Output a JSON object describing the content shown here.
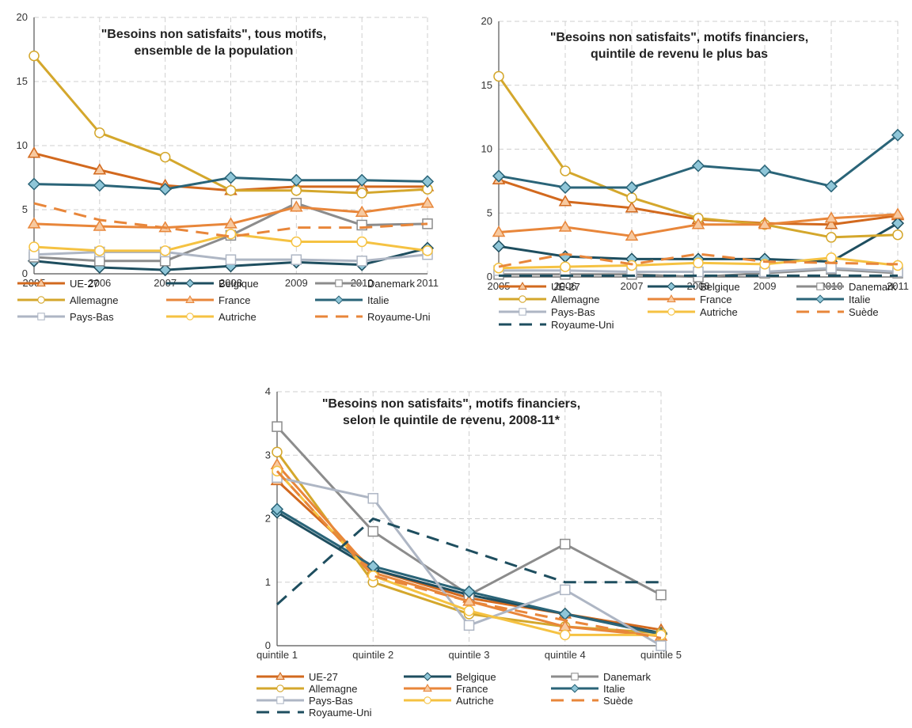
{
  "chart_data": [
    {
      "type": "line",
      "title_lines": [
        "\"Besoins non satisfaits\", tous motifs,",
        "ensemble de la population"
      ],
      "x": [
        "2005",
        "2006",
        "2007",
        "2008",
        "2009",
        "2010",
        "2011"
      ],
      "ylim": [
        0,
        20
      ],
      "yticks": [
        "0",
        "5",
        "10",
        "15",
        "20"
      ],
      "grid": true,
      "legend": "bottom",
      "series": [
        {
          "name": "UE-27",
          "color": "#D2691E",
          "marker": "triangle",
          "dash": false,
          "values": [
            9.4,
            8.1,
            6.9,
            6.5,
            6.8,
            6.8,
            6.8
          ]
        },
        {
          "name": "Belgique",
          "color": "#1E4E5F",
          "marker": "diamond",
          "dash": false,
          "values": [
            1.0,
            0.5,
            0.3,
            0.6,
            0.9,
            0.7,
            2.0
          ]
        },
        {
          "name": "Danemark",
          "color": "#8C8C8C",
          "marker": "square",
          "dash": false,
          "values": [
            1.3,
            1.0,
            1.0,
            3.0,
            5.5,
            3.8,
            3.9
          ]
        },
        {
          "name": "Allemagne",
          "color": "#D4A72C",
          "marker": "circle",
          "dash": false,
          "values": [
            17.0,
            11.0,
            9.1,
            6.5,
            6.5,
            6.3,
            6.6
          ]
        },
        {
          "name": "France",
          "color": "#E8863A",
          "marker": "triangle",
          "dash": false,
          "values": [
            3.9,
            3.7,
            3.6,
            3.9,
            5.2,
            4.8,
            5.5
          ]
        },
        {
          "name": "Italie",
          "color": "#2A6478",
          "marker": "diamond",
          "dash": false,
          "values": [
            7.0,
            6.9,
            6.6,
            7.5,
            7.3,
            7.3,
            7.2
          ]
        },
        {
          "name": "Pays-Bas",
          "color": "#AEB6C4",
          "marker": "square",
          "dash": false,
          "values": [
            1.5,
            1.7,
            1.7,
            1.1,
            1.1,
            1.0,
            1.5
          ]
        },
        {
          "name": "Autriche",
          "color": "#F5C242",
          "marker": "circle",
          "dash": false,
          "values": [
            2.1,
            1.8,
            1.8,
            3.1,
            2.5,
            2.5,
            1.8
          ]
        },
        {
          "name": "Royaume-Uni",
          "color": "#E8863A",
          "marker": "none",
          "dash": true,
          "values": [
            5.5,
            4.2,
            3.6,
            2.9,
            3.6,
            3.6,
            3.9
          ]
        }
      ]
    },
    {
      "type": "line",
      "title_lines": [
        "\"Besoins non satisfaits\", motifs financiers,",
        "quintile de revenu le plus bas"
      ],
      "x": [
        "2005",
        "2006",
        "2007",
        "2008",
        "2009",
        "2010",
        "2011"
      ],
      "ylim": [
        0,
        20
      ],
      "yticks": [
        "0",
        "5",
        "10",
        "15",
        "20"
      ],
      "grid": true,
      "legend": "bottom",
      "series": [
        {
          "name": "UE-27",
          "color": "#D2691E",
          "marker": "triangle",
          "dash": false,
          "values": [
            7.6,
            5.9,
            5.4,
            4.5,
            4.2,
            4.1,
            4.8
          ]
        },
        {
          "name": "Belgique",
          "color": "#1E4E5F",
          "marker": "diamond",
          "dash": false,
          "values": [
            2.4,
            1.6,
            1.4,
            1.4,
            1.4,
            1.2,
            4.2
          ]
        },
        {
          "name": "Danemark",
          "color": "#8C8C8C",
          "marker": "square",
          "dash": false,
          "values": [
            0.2,
            0.2,
            0.2,
            0.0,
            0.3,
            0.6,
            0.3
          ]
        },
        {
          "name": "Allemagne",
          "color": "#D4A72C",
          "marker": "circle",
          "dash": false,
          "values": [
            15.7,
            8.3,
            6.2,
            4.6,
            4.1,
            3.1,
            3.3
          ]
        },
        {
          "name": "France",
          "color": "#E8863A",
          "marker": "triangle",
          "dash": false,
          "values": [
            3.5,
            3.9,
            3.2,
            4.1,
            4.1,
            4.6,
            4.9
          ]
        },
        {
          "name": "Italie",
          "color": "#2A6478",
          "marker": "diamond",
          "dash": false,
          "values": [
            7.9,
            7.0,
            7.0,
            8.7,
            8.3,
            7.1,
            11.1
          ]
        },
        {
          "name": "Pays-Bas",
          "color": "#AEB6C4",
          "marker": "square",
          "dash": false,
          "values": [
            0.5,
            0.5,
            0.4,
            0.4,
            0.4,
            0.7,
            0.4
          ]
        },
        {
          "name": "Autriche",
          "color": "#F5C242",
          "marker": "circle",
          "dash": false,
          "values": [
            0.7,
            0.8,
            0.9,
            1.1,
            1.0,
            1.5,
            0.9
          ]
        },
        {
          "name": "Suède",
          "color": "#E8863A",
          "marker": "none",
          "dash": true,
          "values": [
            0.8,
            1.8,
            1.0,
            1.8,
            1.2,
            1.1,
            1.0
          ]
        },
        {
          "name": "Royaume-Uni",
          "color": "#1E4E5F",
          "marker": "none",
          "dash": true,
          "values": [
            0.1,
            0.1,
            0.1,
            0.1,
            0.1,
            0.1,
            0.1
          ]
        }
      ]
    },
    {
      "type": "line",
      "title_lines": [
        "\"Besoins non satisfaits\", motifs financiers,",
        "selon le quintile de revenu, 2008-11*"
      ],
      "x": [
        "quintile 1",
        "quintile 2",
        "quintile 3",
        "quintile 4",
        "quintile 5"
      ],
      "ylim": [
        0,
        4
      ],
      "yticks": [
        "0",
        "1",
        "2",
        "3",
        "4"
      ],
      "grid": true,
      "legend": "bottom",
      "series": [
        {
          "name": "UE-27",
          "color": "#D2691E",
          "marker": "triangle",
          "dash": false,
          "values": [
            2.6,
            1.2,
            0.75,
            0.5,
            0.25
          ]
        },
        {
          "name": "Belgique",
          "color": "#1E4E5F",
          "marker": "diamond",
          "dash": false,
          "values": [
            2.1,
            1.2,
            0.8,
            0.5,
            0.2
          ]
        },
        {
          "name": "Danemark",
          "color": "#8C8C8C",
          "marker": "square",
          "dash": false,
          "values": [
            3.45,
            1.8,
            0.8,
            1.6,
            0.8
          ]
        },
        {
          "name": "Allemagne",
          "color": "#D4A72C",
          "marker": "circle",
          "dash": false,
          "values": [
            3.05,
            1.0,
            0.5,
            0.3,
            0.2
          ]
        },
        {
          "name": "France",
          "color": "#E8863A",
          "marker": "triangle",
          "dash": false,
          "values": [
            2.85,
            1.15,
            0.7,
            0.3,
            0.15
          ]
        },
        {
          "name": "Italie",
          "color": "#2A6478",
          "marker": "diamond",
          "dash": false,
          "values": [
            2.15,
            1.25,
            0.85,
            0.5,
            0.18
          ]
        },
        {
          "name": "Pays-Bas",
          "color": "#AEB6C4",
          "marker": "square",
          "dash": false,
          "values": [
            2.65,
            2.32,
            0.32,
            0.88,
            0.0
          ]
        },
        {
          "name": "Autriche",
          "color": "#F5C242",
          "marker": "circle",
          "dash": false,
          "values": [
            2.75,
            1.1,
            0.55,
            0.17,
            0.17
          ]
        },
        {
          "name": "Suède",
          "color": "#E8863A",
          "marker": "none",
          "dash": true,
          "values": [
            2.75,
            1.1,
            0.7,
            0.4,
            0.12
          ]
        },
        {
          "name": "Royaume-Uni",
          "color": "#1E4E5F",
          "marker": "none",
          "dash": true,
          "values": [
            0.65,
            2.0,
            1.5,
            1.0,
            1.0
          ]
        }
      ]
    }
  ]
}
